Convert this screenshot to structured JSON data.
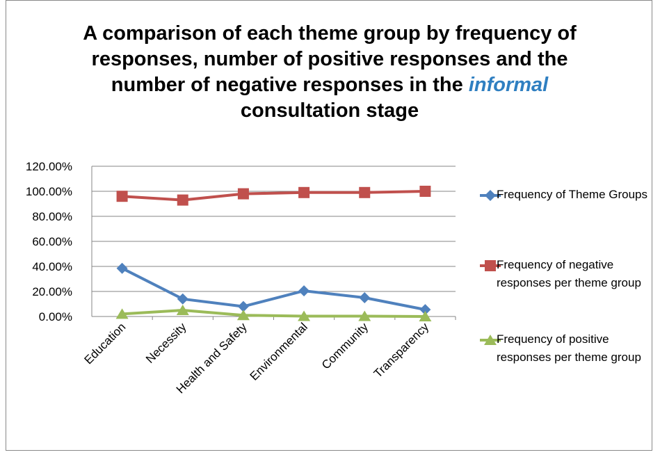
{
  "chart_data": {
    "type": "line",
    "title": [
      "A comparison of each theme group by frequency of responses, number of positive responses and the number of negative responses in the ",
      "informal",
      " consultation stage"
    ],
    "categories": [
      "Education",
      "Necessity",
      "Health and Safety",
      "Environmental",
      "Community",
      "Transparency"
    ],
    "series": [
      {
        "name": "Frequency of Theme Groups",
        "color": "#4f81bd",
        "marker": "diamond",
        "values": [
          38.5,
          14,
          8,
          20.5,
          15,
          5.5
        ]
      },
      {
        "name": "Frequency of negative responses per theme group",
        "color": "#c0504d",
        "marker": "square",
        "values": [
          96,
          93,
          98,
          99,
          99,
          100
        ]
      },
      {
        "name": "Frequency of positive responses per theme group",
        "color": "#9bbb59",
        "marker": "triangle",
        "values": [
          2,
          5,
          1,
          0.3,
          0.3,
          0
        ]
      }
    ],
    "ylim": [
      0,
      120
    ],
    "yticks": [
      {
        "value": 0,
        "label": "0.00%"
      },
      {
        "value": 20,
        "label": "20.00%"
      },
      {
        "value": 40,
        "label": "40.00%"
      },
      {
        "value": 60,
        "label": "60.00%"
      },
      {
        "value": 80,
        "label": "80.00%"
      },
      {
        "value": 100,
        "label": "100.00%"
      },
      {
        "value": 120,
        "label": "120.00%"
      }
    ],
    "grid": true,
    "legend": "right"
  }
}
